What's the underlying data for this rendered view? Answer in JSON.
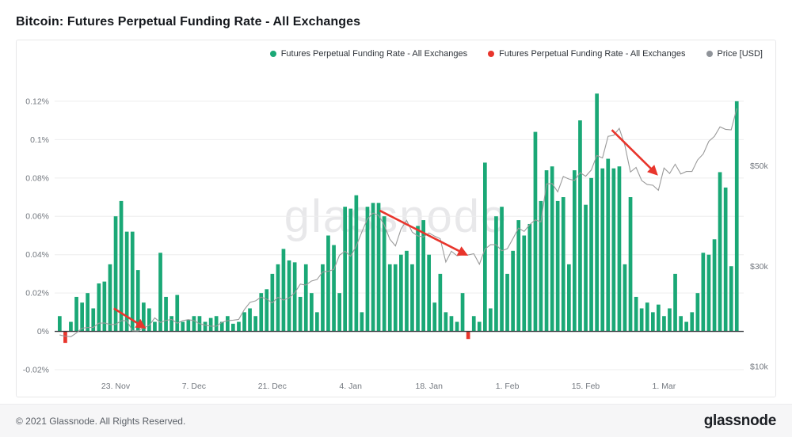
{
  "page": {
    "title": "Bitcoin: Futures Perpetual Funding Rate - All Exchanges",
    "watermark": "glassnode"
  },
  "legend": {
    "items": [
      {
        "label": "Futures Perpetual Funding Rate - All Exchanges",
        "color": "#1aa876"
      },
      {
        "label": "Futures Perpetual Funding Rate - All Exchanges",
        "color": "#e8352c"
      },
      {
        "label": "Price [USD]",
        "color": "#8f9399"
      }
    ]
  },
  "footer": {
    "copyright": "© 2021 Glassnode. All Rights Reserved.",
    "brand": "glassnode"
  },
  "chart_data": {
    "type": "bar",
    "title": "Bitcoin: Futures Perpetual Funding Rate - All Exchanges",
    "bar_series_name": "Futures Perpetual Funding Rate - All Exchanges",
    "line_series_name": "Price [USD]",
    "legend_position": "top-right",
    "grid": true,
    "colors": {
      "bar_positive": "#1aa876",
      "bar_negative": "#e8352c",
      "price_line": "#9a9a9a",
      "grid": "#ededee",
      "zero_line": "#33373c",
      "annotation": "#e8352c"
    },
    "x_tick_labels": [
      "23. Nov",
      "7. Dec",
      "21. Dec",
      "4. Jan",
      "18. Jan",
      "1. Feb",
      "15. Feb",
      "1. Mar"
    ],
    "x_tick_indices": [
      10,
      24,
      38,
      52,
      66,
      80,
      94,
      108
    ],
    "funding_axis": {
      "ticks": [
        -0.02,
        0,
        0.02,
        0.04,
        0.06,
        0.08,
        0.1,
        0.12
      ],
      "tick_labels": [
        "-0.02%",
        "0%",
        "0.02%",
        "0.04%",
        "0.06%",
        "0.08%",
        "0.1%",
        "0.12%"
      ],
      "min": -0.0225,
      "max": 0.132
    },
    "price_axis": {
      "ticks": [
        10000,
        30000,
        50000
      ],
      "tick_labels": [
        "$10k",
        "$30k",
        "$50k"
      ],
      "min": 8400,
      "max": 67500
    },
    "funding_pct": [
      0.008,
      -0.006,
      0.005,
      0.018,
      0.015,
      0.02,
      0.012,
      0.025,
      0.026,
      0.035,
      0.06,
      0.068,
      0.052,
      0.052,
      0.032,
      0.015,
      0.012,
      0.005,
      0.041,
      0.018,
      0.008,
      0.019,
      0.005,
      0.006,
      0.008,
      0.008,
      0.005,
      0.007,
      0.008,
      0.005,
      0.008,
      0.004,
      0.005,
      0.01,
      0.012,
      0.008,
      0.02,
      0.022,
      0.03,
      0.035,
      0.043,
      0.037,
      0.036,
      0.018,
      0.035,
      0.02,
      0.01,
      0.035,
      0.05,
      0.045,
      0.02,
      0.065,
      0.064,
      0.071,
      0.01,
      0.065,
      0.067,
      0.067,
      0.06,
      0.035,
      0.035,
      0.04,
      0.042,
      0.035,
      0.055,
      0.058,
      0.04,
      0.015,
      0.03,
      0.01,
      0.008,
      0.005,
      0.02,
      -0.004,
      0.008,
      0.005,
      0.088,
      0.012,
      0.06,
      0.065,
      0.03,
      0.042,
      0.058,
      0.05,
      0.056,
      0.104,
      0.068,
      0.084,
      0.086,
      0.068,
      0.07,
      0.035,
      0.084,
      0.11,
      0.066,
      0.08,
      0.124,
      0.085,
      0.09,
      0.085,
      0.086,
      0.035,
      0.07,
      0.018,
      0.012,
      0.015,
      0.01,
      0.014,
      0.008,
      0.012,
      0.03,
      0.008,
      0.005,
      0.01,
      0.02,
      0.041,
      0.04,
      0.048,
      0.083,
      0.075,
      0.034,
      0.12
    ],
    "price_usd": [
      16300,
      16050,
      15950,
      16700,
      17650,
      17800,
      17800,
      18650,
      18700,
      18400,
      18400,
      19150,
      19150,
      17150,
      17100,
      17700,
      18200,
      19700,
      18800,
      19200,
      19400,
      18650,
      19150,
      19350,
      19150,
      18550,
      18250,
      18050,
      18050,
      18800,
      19150,
      19250,
      19400,
      21350,
      22800,
      23100,
      23850,
      23450,
      22700,
      23800,
      23250,
      23700,
      24700,
      26450,
      26250,
      27050,
      27350,
      28850,
      29000,
      29350,
      32200,
      33000,
      32000,
      34000,
      36850,
      39450,
      40600,
      40150,
      38250,
      35400,
      34050,
      37400,
      39150,
      36800,
      36050,
      35850,
      36650,
      36000,
      35500,
      30850,
      33000,
      32100,
      32300,
      32250,
      32500,
      30400,
      33400,
      34300,
      34300,
      33100,
      33500,
      35500,
      37600,
      36950,
      38300,
      39250,
      38850,
      46400,
      46500,
      44850,
      47900,
      47400,
      47100,
      48650,
      47950,
      49200,
      52100,
      51600,
      55900,
      56100,
      57500,
      54100,
      48800,
      49700,
      47100,
      46300,
      46150,
      45150,
      49600,
      48500,
      50350,
      48400,
      48900,
      48900,
      51200,
      52400,
      54900,
      55900,
      57800,
      57300,
      57200,
      61500
    ],
    "annotations": [
      {
        "type": "arrow",
        "from": {
          "i": 10,
          "v": 0.012
        },
        "to": {
          "i": 15.5,
          "v": 0.002
        }
      },
      {
        "type": "arrow",
        "from": {
          "i": 57.5,
          "v": 0.063
        },
        "to": {
          "i": 73,
          "v": 0.04
        }
      },
      {
        "type": "arrow",
        "from": {
          "i": 99,
          "v": 0.105
        },
        "to": {
          "i": 107,
          "v": 0.082
        }
      }
    ]
  }
}
